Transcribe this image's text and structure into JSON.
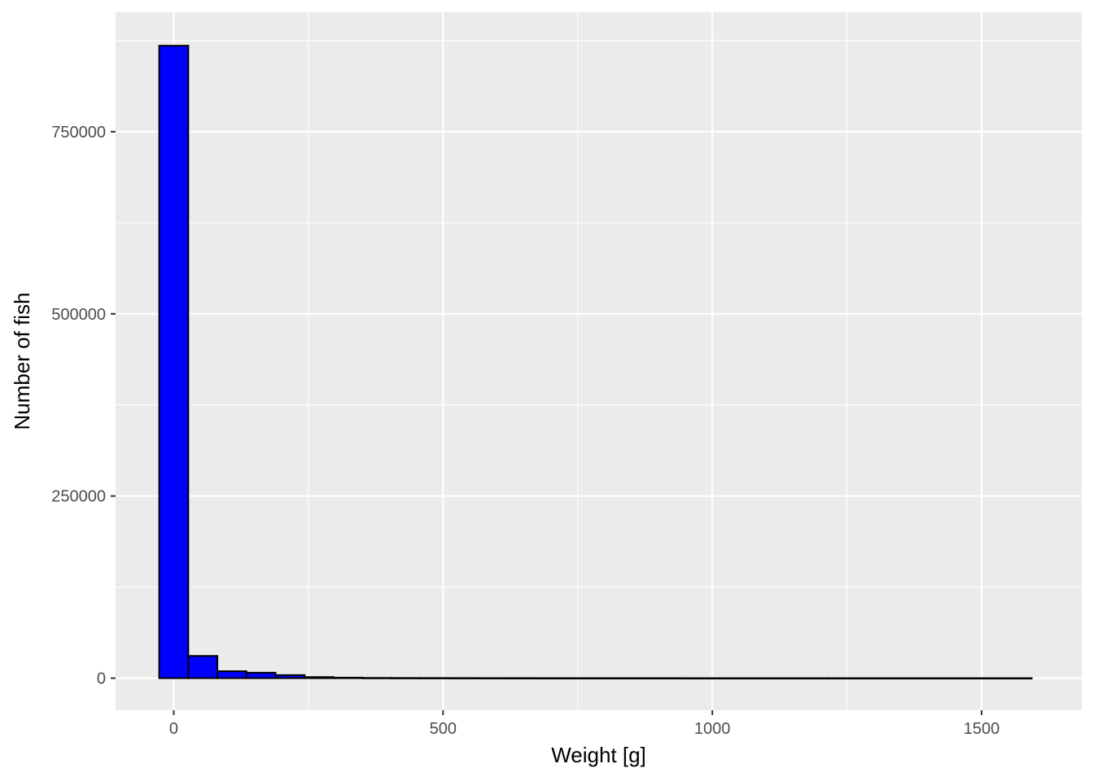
{
  "chart_data": {
    "type": "bar",
    "title": "",
    "xlabel": "Weight [g]",
    "ylabel": "Number of fish",
    "xlim": [
      -108,
      1686
    ],
    "ylim": [
      -44000,
      914000
    ],
    "x_ticks": [
      0,
      500,
      1000,
      1500
    ],
    "x_tick_labels": [
      "0",
      "500",
      "1000",
      "1500"
    ],
    "y_ticks": [
      0,
      250000,
      500000,
      750000
    ],
    "y_tick_labels": [
      "0",
      "250000",
      "500000",
      "750000"
    ],
    "grid": true,
    "legend": "none",
    "bin_width": 54,
    "bin_centers": [
      0,
      54,
      108,
      162,
      216,
      270,
      324,
      378,
      432,
      486,
      540,
      594,
      648,
      702,
      756,
      810,
      864,
      918,
      972,
      1026,
      1080,
      1134,
      1188,
      1242,
      1296,
      1350,
      1404,
      1458,
      1512,
      1566
    ],
    "values": [
      868000,
      30500,
      9500,
      7500,
      4200,
      1500,
      700,
      350,
      250,
      200,
      150,
      100,
      80,
      60,
      50,
      40,
      30,
      30,
      20,
      20,
      15,
      10,
      10,
      10,
      8,
      5,
      5,
      5,
      5,
      5
    ]
  },
  "colors": {
    "panel_background": "#ebebeb",
    "grid": "#ffffff",
    "bar_fill": "#0000ff",
    "bar_outline": "#000000"
  }
}
